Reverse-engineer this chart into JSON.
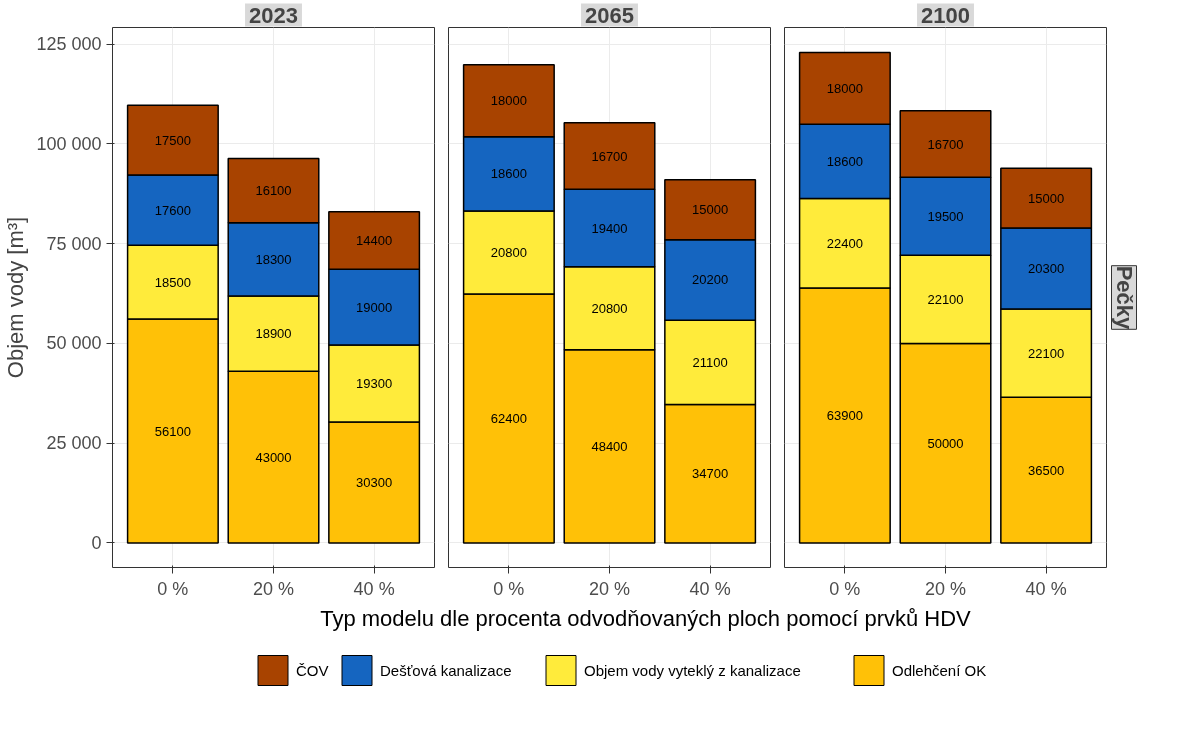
{
  "chart_data": [
    {
      "type": "bar",
      "title": "2023",
      "stacked": true,
      "data_labels": true,
      "grid": true,
      "legend": "bottom",
      "ylabel": "Objem vody [m³]",
      "categories": [
        "0 %",
        "20 %",
        "40 %"
      ],
      "ylim": [
        -6150,
        129150
      ],
      "yticks": [
        {
          "value": 0,
          "label": "0"
        },
        {
          "value": 25000,
          "label": "25 000"
        },
        {
          "value": 50000,
          "label": "50 000"
        },
        {
          "value": 75000,
          "label": "75 000"
        },
        {
          "value": 100000,
          "label": "100 000"
        },
        {
          "value": 125000,
          "label": "125 000"
        }
      ],
      "series": [
        {
          "name": "Odlehčení OK",
          "color": "#ffc107",
          "values": [
            56100,
            43000,
            30300
          ]
        },
        {
          "name": "Objem vody vyteklý z kanalizace",
          "color": "#ffeb3b",
          "values": [
            18500,
            18900,
            19300
          ]
        },
        {
          "name": "Dešťová kanalizace",
          "color": "#1565c0",
          "values": [
            17600,
            18300,
            19000
          ]
        },
        {
          "name": "ČOV",
          "color": "#a84300",
          "values": [
            17500,
            16100,
            14400
          ]
        }
      ]
    },
    {
      "type": "bar",
      "title": "2065",
      "stacked": true,
      "data_labels": true,
      "grid": true,
      "tick_labels": "x",
      "xlabel": "Typ modelu dle procenta odvodňovaných ploch pomocí prvků HDV",
      "categories": [
        "0 %",
        "20 %",
        "40 %"
      ],
      "ylim": [
        -6150,
        129150
      ],
      "yticks": [
        {
          "value": 0,
          "label": null
        },
        {
          "value": 25000,
          "label": null
        },
        {
          "value": 50000,
          "label": null
        },
        {
          "value": 75000,
          "label": null
        },
        {
          "value": 100000,
          "label": null
        },
        {
          "value": 125000,
          "label": null
        }
      ],
      "series": [
        {
          "color": "#ffc107",
          "values": [
            62400,
            48400,
            34700
          ]
        },
        {
          "color": "#ffeb3b",
          "values": [
            20800,
            20800,
            21100
          ]
        },
        {
          "color": "#1565c0",
          "values": [
            18600,
            19400,
            20200
          ]
        },
        {
          "color": "#a84300",
          "values": [
            18000,
            16700,
            15000
          ]
        }
      ]
    },
    {
      "type": "bar",
      "title": "2100",
      "stacked": true,
      "data_labels": true,
      "grid": true,
      "tick_labels": "x",
      "annotations": [
        "Pečky"
      ],
      "categories": [
        "0 %",
        "20 %",
        "40 %"
      ],
      "ylim": [
        -6150,
        129150
      ],
      "yticks": [
        {
          "value": 0,
          "label": null
        },
        {
          "value": 25000,
          "label": null
        },
        {
          "value": 50000,
          "label": null
        },
        {
          "value": 75000,
          "label": null
        },
        {
          "value": 100000,
          "label": null
        },
        {
          "value": 125000,
          "label": null
        }
      ],
      "series": [
        {
          "color": "#ffc107",
          "values": [
            63900,
            50000,
            36500
          ]
        },
        {
          "color": "#ffeb3b",
          "values": [
            22400,
            22100,
            22100
          ]
        },
        {
          "color": "#1565c0",
          "values": [
            18600,
            19500,
            20300
          ]
        },
        {
          "color": "#a84300",
          "values": [
            18000,
            16700,
            15000
          ]
        }
      ]
    }
  ]
}
